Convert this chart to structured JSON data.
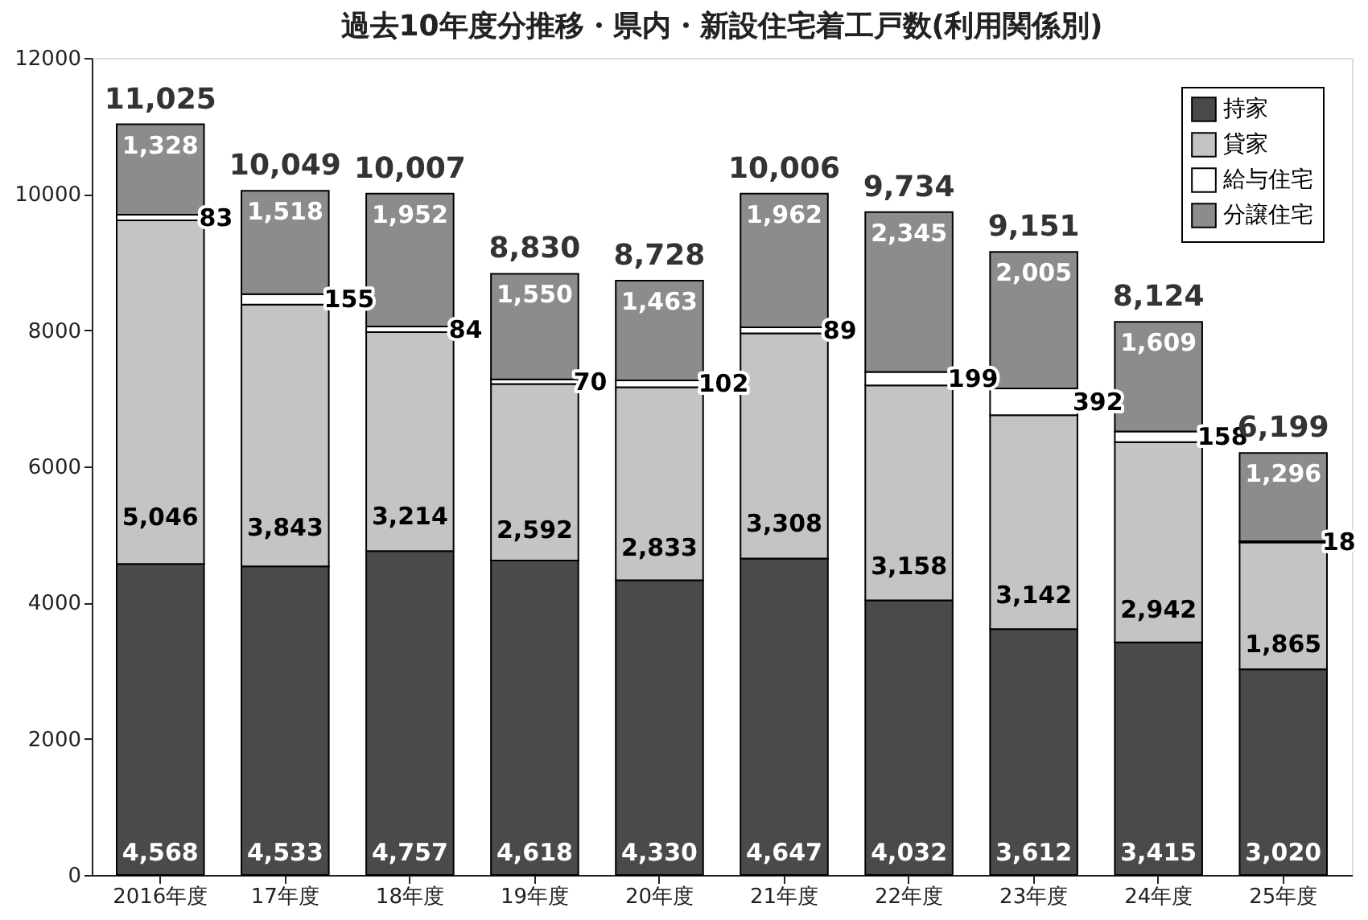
{
  "chart_data": {
    "type": "bar",
    "title": "過去10年度分推移・県内・新設住宅着工戸数(利用関係別)",
    "categories": [
      "2016年度",
      "17年度",
      "18年度",
      "19年度",
      "20年度",
      "21年度",
      "22年度",
      "23年度",
      "24年度",
      "25年度"
    ],
    "stacked": true,
    "ylim": [
      0,
      12000
    ],
    "yticks": [
      0,
      2000,
      4000,
      6000,
      8000,
      10000,
      12000
    ],
    "grid": false,
    "legend": "top right",
    "data_labels": true,
    "series": [
      {
        "name": "持家",
        "color": "#4a4a4a",
        "values": [
          4568,
          4533,
          4757,
          4618,
          4330,
          4647,
          4032,
          3612,
          3415,
          3020
        ],
        "value_labels": [
          "4,568",
          "4,533",
          "4,757",
          "4,618",
          "4,330",
          "4,647",
          "4,032",
          "3,612",
          "3,415",
          "3,020"
        ]
      },
      {
        "name": "貸家",
        "color": "#c4c4c4",
        "values": [
          5046,
          3843,
          3214,
          2592,
          2833,
          3308,
          3158,
          3142,
          2942,
          1865
        ],
        "value_labels": [
          "5,046",
          "3,843",
          "3,214",
          "2,592",
          "2,833",
          "3,308",
          "3,158",
          "3,142",
          "2,942",
          "1,865"
        ]
      },
      {
        "name": "給与住宅",
        "color": "#ffffff",
        "values": [
          83,
          155,
          84,
          70,
          102,
          89,
          199,
          392,
          158,
          18
        ],
        "value_labels": [
          "83",
          "155",
          "84",
          "70",
          "102",
          "89",
          "199",
          "392",
          "158",
          "18"
        ]
      },
      {
        "name": "分譲住宅",
        "color": "#8c8c8c",
        "values": [
          1328,
          1518,
          1952,
          1550,
          1463,
          1962,
          2345,
          2005,
          1609,
          1296
        ],
        "value_labels": [
          "1,328",
          "1,518",
          "1,952",
          "1,550",
          "1,463",
          "1,962",
          "2,345",
          "2,005",
          "1,609",
          "1,296"
        ]
      }
    ],
    "totals": [
      "11,025",
      "10,049",
      "10,007",
      "8,830",
      "8,728",
      "10,006",
      "9,734",
      "9,151",
      "8,124",
      "6,199"
    ]
  }
}
